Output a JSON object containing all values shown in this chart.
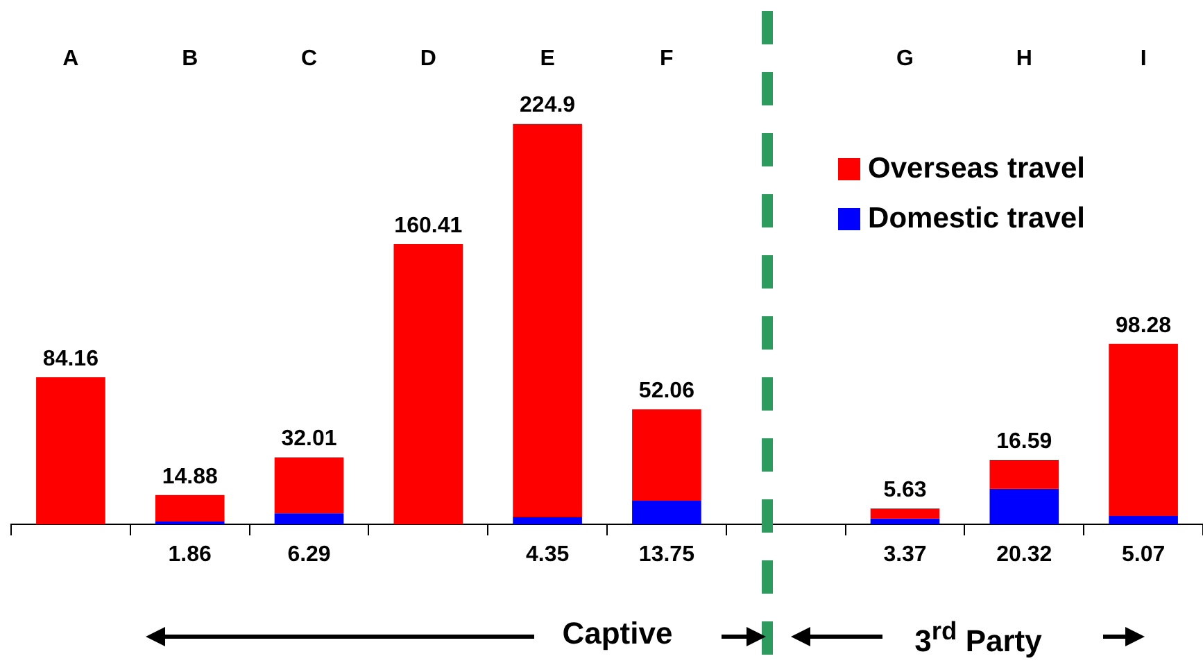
{
  "chart_data": {
    "type": "bar",
    "stacked": true,
    "categories": [
      "A",
      "B",
      "C",
      "D",
      "E",
      "F",
      null,
      "G",
      "H",
      "I"
    ],
    "series": [
      {
        "name": "Domestic travel",
        "color": "#0000ff",
        "values": [
          null,
          1.86,
          6.29,
          null,
          4.35,
          13.75,
          null,
          3.37,
          20.32,
          5.07
        ]
      },
      {
        "name": "Overseas travel",
        "color": "#ff0000",
        "values": [
          84.16,
          14.88,
          32.01,
          160.41,
          224.9,
          52.06,
          null,
          5.63,
          16.59,
          98.28
        ]
      }
    ],
    "data_labels": true,
    "legend": "top right",
    "grid": false,
    "annotations": [
      "Captive",
      "3$^{rd}$ Party"
    ]
  }
}
